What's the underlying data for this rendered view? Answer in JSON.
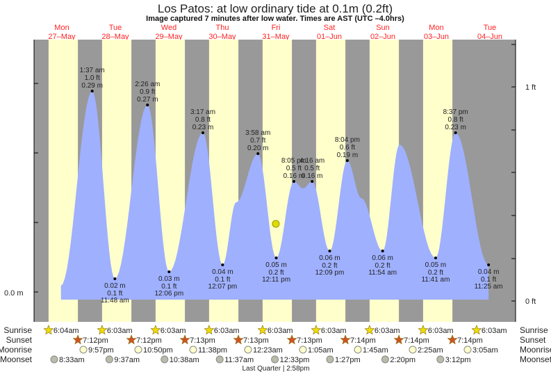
{
  "chart_data": {
    "type": "area",
    "title": "Los Patos: at low  ordinary tide at 0.1m (0.2ft)",
    "subtitle": "Image captured 7 minutes after low water. Times are AST (UTC –4.0hrs)",
    "days": [
      {
        "dow": "Mon",
        "date": "27–May"
      },
      {
        "dow": "Tue",
        "date": "28–May"
      },
      {
        "dow": "Wed",
        "date": "29–May"
      },
      {
        "dow": "Thu",
        "date": "30–May"
      },
      {
        "dow": "Fri",
        "date": "31–May"
      },
      {
        "dow": "Sat",
        "date": "01–Jun"
      },
      {
        "dow": "Sun",
        "date": "02–Jun"
      },
      {
        "dow": "Mon",
        "date": "03–Jun"
      },
      {
        "dow": "Tue",
        "date": "04–Jun"
      }
    ],
    "x_unit": "hours since Mon 27-May 00:00",
    "left_axis_label": "0.0 m",
    "right_axis_labels": [
      "1 ft",
      "0 ft"
    ],
    "current_level_m": 0.1,
    "current_time_hours": 108.3,
    "extremes": [
      {
        "type": "high",
        "t": 25.62,
        "m": 0.29,
        "time": "1:37 am",
        "ft": "1.0 ft",
        "m_label": "0.29 m"
      },
      {
        "type": "low",
        "t": 35.8,
        "m": 0.02,
        "time": "11:48 am",
        "ft": "0.1 ft",
        "m_label": "0.02 m"
      },
      {
        "type": "high",
        "t": 50.43,
        "m": 0.27,
        "time": "2:26 am",
        "ft": "0.9 ft",
        "m_label": "0.27 m"
      },
      {
        "type": "low",
        "t": 60.1,
        "m": 0.03,
        "time": "12:06 pm",
        "ft": "0.1 ft",
        "m_label": "0.03 m"
      },
      {
        "type": "high",
        "t": 75.28,
        "m": 0.23,
        "time": "3:17 am",
        "ft": "0.8 ft",
        "m_label": "0.23 m"
      },
      {
        "type": "low",
        "t": 84.12,
        "m": 0.04,
        "time": "12:07 pm",
        "ft": "0.1 ft",
        "m_label": "0.04 m"
      },
      {
        "type": "high",
        "t": 99.97,
        "m": 0.2,
        "time": "3:58 am",
        "ft": "0.7 ft",
        "m_label": "0.20 m"
      },
      {
        "type": "low",
        "t": 108.18,
        "m": 0.05,
        "time": "12:11 pm",
        "ft": "0.2 ft",
        "m_label": "0.05 m"
      },
      {
        "type": "high",
        "t": 116.08,
        "m": 0.16,
        "time": "8:05 pm",
        "ft": "0.5 ft",
        "m_label": "0.16 m"
      },
      {
        "type": "high",
        "t": 124.27,
        "m": 0.16,
        "time": "4:16 am",
        "ft": "0.5 ft",
        "m_label": "0.16 m"
      },
      {
        "type": "low",
        "t": 132.15,
        "m": 0.06,
        "time": "12:09 pm",
        "ft": "0.2 ft",
        "m_label": "0.06 m"
      },
      {
        "type": "high",
        "t": 140.07,
        "m": 0.19,
        "time": "8:04 pm",
        "ft": "0.6 ft",
        "m_label": "0.19 m"
      },
      {
        "type": "low",
        "t": 155.9,
        "m": 0.06,
        "time": "11:54 am",
        "ft": "0.2 ft",
        "m_label": "0.06 m"
      },
      {
        "type": "low",
        "t": 179.68,
        "m": 0.05,
        "time": "11:41 am",
        "ft": "0.2 ft",
        "m_label": "0.05 m"
      },
      {
        "type": "high",
        "t": 188.62,
        "m": 0.23,
        "time": "8:37 pm",
        "ft": "0.8 ft",
        "m_label": "0.23 m"
      },
      {
        "type": "low",
        "t": 203.42,
        "m": 0.04,
        "time": "11:25 am",
        "ft": "0.1 ft",
        "m_label": "0.04 m"
      }
    ],
    "curve": [
      [
        11.6,
        0.01
      ],
      [
        25.62,
        0.29
      ],
      [
        35.8,
        0.02
      ],
      [
        50.43,
        0.27
      ],
      [
        60.1,
        0.03
      ],
      [
        75.28,
        0.23
      ],
      [
        84.12,
        0.04
      ],
      [
        90.2,
        0.13
      ],
      [
        99.97,
        0.2
      ],
      [
        108.18,
        0.05
      ],
      [
        116.08,
        0.16
      ],
      [
        120.2,
        0.15
      ],
      [
        124.27,
        0.16
      ],
      [
        132.15,
        0.06
      ],
      [
        140.07,
        0.19
      ],
      [
        146.3,
        0.136
      ],
      [
        155.9,
        0.06
      ],
      [
        163.5,
        0.213
      ],
      [
        179.68,
        0.05
      ],
      [
        188.62,
        0.23
      ],
      [
        203.42,
        0.04
      ]
    ],
    "rows": {
      "sunrise": {
        "label": "Sunrise",
        "times": [
          "6:04am",
          "6:03am",
          "6:03am",
          "6:03am",
          "6:03am",
          "6:03am",
          "6:03am",
          "6:03am",
          "6:03am"
        ]
      },
      "sunset": {
        "label": "Sunset",
        "times": [
          "7:12pm",
          "7:12pm",
          "7:13pm",
          "7:13pm",
          "7:13pm",
          "7:14pm",
          "7:14pm",
          "7:14pm"
        ]
      },
      "moonrise": {
        "label": "Moonrise",
        "times": [
          "9:57pm",
          "10:50pm",
          "11:38pm",
          "12:23am",
          "1:05am",
          "1:45am",
          "2:25am",
          "3:05am"
        ]
      },
      "moonset": {
        "label": "Moonset",
        "times": [
          "8:33am",
          "9:37am",
          "10:38am",
          "11:37am",
          "12:33pm",
          "1:27pm",
          "2:20pm",
          "3:12pm"
        ]
      }
    },
    "moon_phase": "Last Quarter | 2:58pm",
    "colors": {
      "day": "#ffffcc",
      "night": "#999999",
      "water": "#9fb0ff",
      "date": "#ff2222"
    }
  }
}
